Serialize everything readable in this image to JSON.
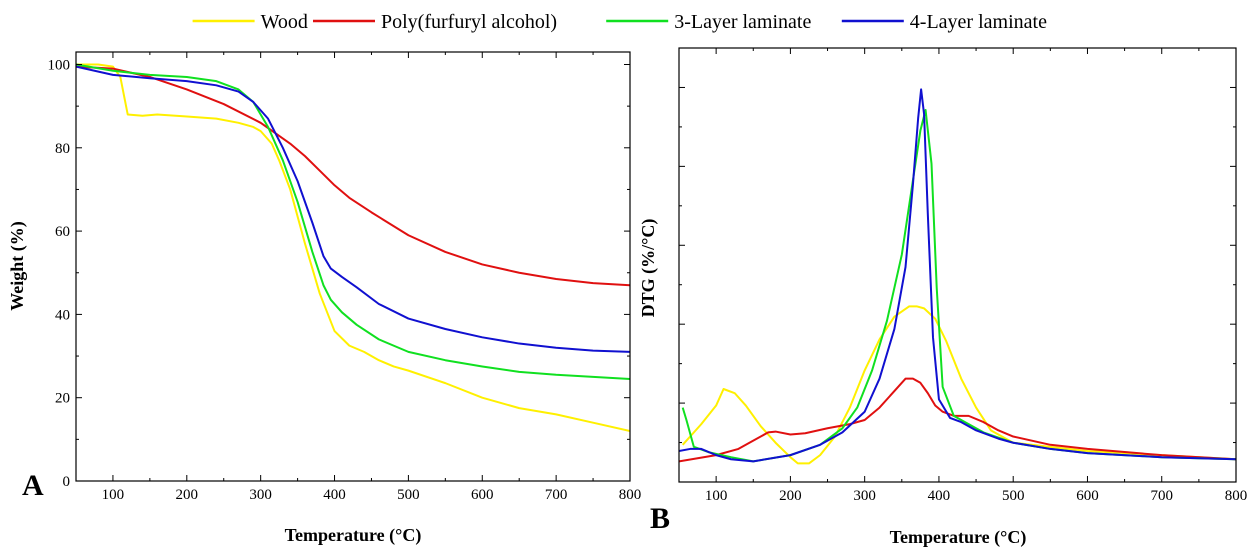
{
  "legend": [
    {
      "name": "Wood",
      "color": "#FFF000"
    },
    {
      "name": "Poly(furfuryl alcohol)",
      "color": "#E01010"
    },
    {
      "name": "3-Layer laminate",
      "color": "#10E020"
    },
    {
      "name": "4-Layer laminate",
      "color": "#1010D0"
    }
  ],
  "chart_data": [
    {
      "type": "line",
      "panel": "A",
      "title": "",
      "xlabel": "Temperature (°C)",
      "ylabel": "Weight (%)",
      "xlim": [
        50,
        800
      ],
      "ylim": [
        0,
        103
      ],
      "xticks": [
        100,
        200,
        300,
        400,
        500,
        600,
        700,
        800
      ],
      "yticks": [
        0,
        20,
        40,
        60,
        80,
        100
      ],
      "series": [
        {
          "name": "Wood",
          "color": "#FFF000",
          "x": [
            50,
            80,
            100,
            110,
            120,
            140,
            160,
            200,
            240,
            270,
            290,
            300,
            315,
            325,
            340,
            360,
            380,
            400,
            420,
            440,
            460,
            480,
            500,
            550,
            600,
            650,
            700,
            750,
            800
          ],
          "y": [
            100,
            100,
            99.5,
            97,
            88,
            87.7,
            88,
            87.5,
            87,
            86,
            85,
            84,
            81,
            77,
            70,
            57,
            45,
            36,
            32.5,
            31,
            29,
            27.5,
            26.5,
            23.5,
            20,
            17.5,
            16,
            14,
            12
          ]
        },
        {
          "name": "Poly(furfuryl alcohol)",
          "color": "#E01010",
          "x": [
            50,
            100,
            150,
            200,
            250,
            300,
            340,
            360,
            380,
            400,
            420,
            450,
            500,
            550,
            600,
            650,
            700,
            750,
            800
          ],
          "y": [
            99.5,
            99,
            97,
            94,
            90.5,
            86,
            81,
            78,
            74.5,
            71,
            68,
            64.5,
            59,
            55,
            52,
            50,
            48.5,
            47.5,
            47
          ]
        },
        {
          "name": "3-Layer laminate",
          "color": "#10E020",
          "x": [
            50,
            100,
            150,
            200,
            240,
            270,
            290,
            310,
            330,
            350,
            370,
            385,
            395,
            410,
            430,
            460,
            500,
            550,
            600,
            650,
            700,
            750,
            800
          ],
          "y": [
            100,
            98.5,
            97.5,
            97,
            96,
            94,
            91,
            85,
            77,
            67,
            55,
            47,
            43.5,
            40.5,
            37.5,
            34,
            31,
            29,
            27.5,
            26.2,
            25.5,
            25,
            24.5
          ]
        },
        {
          "name": "4-Layer laminate",
          "color": "#1010D0",
          "x": [
            50,
            100,
            150,
            200,
            240,
            270,
            290,
            310,
            330,
            350,
            370,
            385,
            395,
            410,
            430,
            460,
            500,
            550,
            600,
            650,
            700,
            750,
            800
          ],
          "y": [
            99.5,
            97.5,
            96.7,
            96,
            95,
            93.5,
            91,
            87,
            80,
            72,
            62,
            54,
            51,
            49,
            46.5,
            42.5,
            39,
            36.5,
            34.5,
            33,
            32,
            31.3,
            31
          ]
        }
      ],
      "panel_label": "A"
    },
    {
      "type": "line",
      "panel": "B",
      "title": "",
      "xlabel": "Temperature (°C)",
      "ylabel": "DTG (%/°C)",
      "xlim": [
        50,
        800
      ],
      "ylim": [
        -0.05,
        1.0
      ],
      "xticks": [
        100,
        200,
        300,
        400,
        500,
        600,
        700,
        800
      ],
      "yticks": [],
      "series": [
        {
          "name": "Wood",
          "color": "#FFF000",
          "x": [
            55,
            80,
            100,
            105,
            110,
            125,
            140,
            160,
            180,
            200,
            210,
            225,
            240,
            260,
            280,
            300,
            320,
            340,
            360,
            370,
            380,
            395,
            410,
            430,
            450,
            470,
            500,
            550,
            600,
            700,
            800
          ],
          "y": [
            0.04,
            0.09,
            0.135,
            0.155,
            0.175,
            0.165,
            0.135,
            0.085,
            0.045,
            0.01,
            -0.005,
            -0.005,
            0.015,
            0.06,
            0.13,
            0.22,
            0.295,
            0.35,
            0.375,
            0.375,
            0.37,
            0.345,
            0.29,
            0.2,
            0.13,
            0.075,
            0.045,
            0.035,
            0.025,
            0.015,
            0.005
          ]
        },
        {
          "name": "Poly(furfuryl alcohol)",
          "color": "#E01010",
          "x": [
            50,
            100,
            130,
            150,
            170,
            180,
            200,
            220,
            250,
            280,
            300,
            320,
            340,
            355,
            365,
            375,
            385,
            395,
            405,
            420,
            440,
            460,
            480,
            500,
            550,
            600,
            700,
            800
          ],
          "y": [
            0.0,
            0.015,
            0.03,
            0.05,
            0.07,
            0.072,
            0.065,
            0.068,
            0.08,
            0.09,
            0.1,
            0.13,
            0.17,
            0.2,
            0.2,
            0.19,
            0.165,
            0.135,
            0.12,
            0.11,
            0.11,
            0.095,
            0.075,
            0.06,
            0.04,
            0.03,
            0.015,
            0.005
          ]
        },
        {
          "name": "3-Layer laminate",
          "color": "#10E020",
          "x": [
            55,
            60,
            70,
            90,
            120,
            150,
            200,
            240,
            270,
            290,
            310,
            330,
            350,
            365,
            375,
            382,
            390,
            397,
            405,
            420,
            440,
            460,
            500,
            550,
            600,
            700,
            800
          ],
          "y": [
            0.13,
            0.1,
            0.035,
            0.022,
            0.01,
            0.0,
            0.015,
            0.04,
            0.08,
            0.13,
            0.22,
            0.34,
            0.5,
            0.68,
            0.8,
            0.85,
            0.72,
            0.42,
            0.18,
            0.11,
            0.09,
            0.07,
            0.045,
            0.03,
            0.02,
            0.01,
            0.005
          ]
        },
        {
          "name": "4-Layer laminate",
          "color": "#1010D0",
          "x": [
            50,
            65,
            80,
            100,
            120,
            150,
            200,
            240,
            270,
            300,
            320,
            340,
            355,
            365,
            372,
            376,
            380,
            385,
            392,
            400,
            415,
            430,
            450,
            480,
            500,
            550,
            600,
            700,
            800
          ],
          "y": [
            0.025,
            0.03,
            0.03,
            0.015,
            0.005,
            0.0,
            0.015,
            0.04,
            0.07,
            0.12,
            0.2,
            0.32,
            0.47,
            0.67,
            0.83,
            0.9,
            0.84,
            0.6,
            0.3,
            0.15,
            0.105,
            0.095,
            0.075,
            0.055,
            0.045,
            0.03,
            0.02,
            0.01,
            0.005
          ]
        }
      ],
      "panel_label": "B"
    }
  ]
}
